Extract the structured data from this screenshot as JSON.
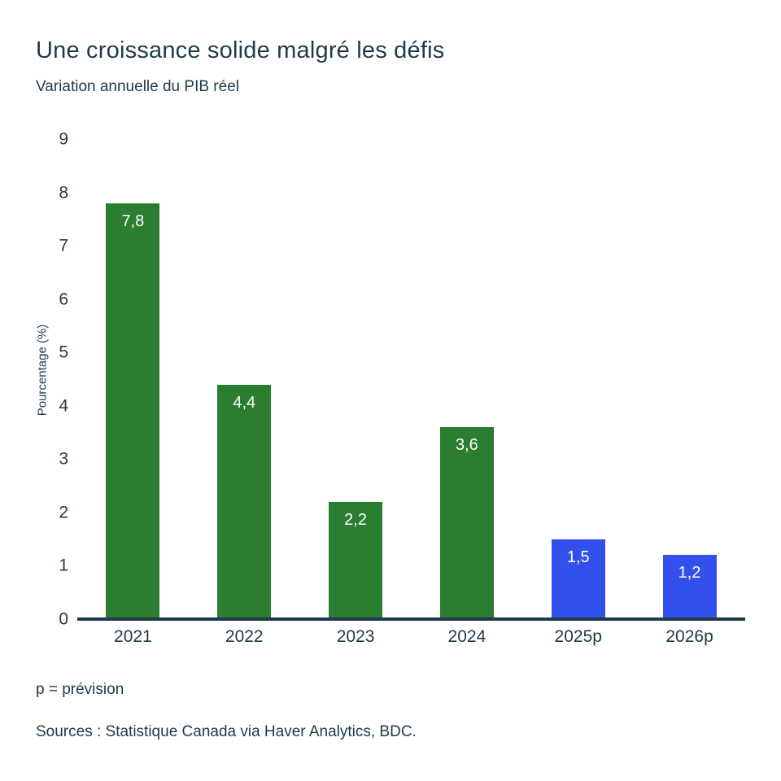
{
  "header": {
    "title": "Une croissance solide malgré les défis",
    "subtitle": "Variation annuelle du PIB réel"
  },
  "chart_data": {
    "type": "bar",
    "title": "Une croissance solide malgré les défis",
    "subtitle": "Variation annuelle du PIB réel",
    "categories": [
      "2021",
      "2022",
      "2023",
      "2024",
      "2025p",
      "2026p"
    ],
    "values": [
      7.8,
      4.4,
      2.2,
      3.6,
      1.5,
      1.2
    ],
    "value_labels": [
      "7,8",
      "4,4",
      "2,2",
      "3,6",
      "1,5",
      "1,2"
    ],
    "bar_colors": [
      "#2b7d2f",
      "#2b7d2f",
      "#2b7d2f",
      "#2b7d2f",
      "#3450ec",
      "#3450ec"
    ],
    "series_semantics": [
      "actual",
      "actual",
      "actual",
      "actual",
      "forecast",
      "forecast"
    ],
    "xlabel": "",
    "ylabel": "Pourcentage (%)",
    "ylim": [
      0,
      9
    ],
    "yticks": [
      9,
      8,
      7,
      6,
      5,
      4,
      3,
      2,
      1,
      0
    ],
    "grid": false,
    "legend": null,
    "colors": {
      "actual_bar": "#2b7d2f",
      "forecast_bar": "#3450ec",
      "axis_line": "#1d3b4a",
      "text": "#1d3b4a",
      "value_label_text": "#ffffff",
      "background": "#ffffff"
    }
  },
  "footnotes": {
    "forecast_note": "p = prévision",
    "sources": "Sources : Statistique Canada via Haver Analytics, BDC."
  }
}
